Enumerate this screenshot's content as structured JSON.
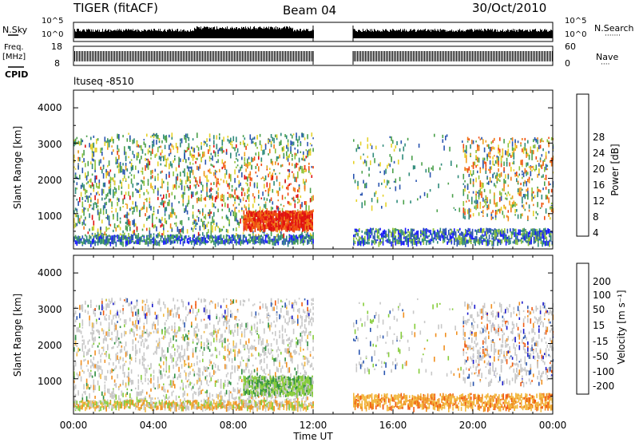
{
  "header": {
    "station": "TIGER (fitACF)",
    "beam": "Beam 04",
    "date": "30/Oct/2010"
  },
  "panel_labels": {
    "nsky": "N.Sky",
    "nsky_hi": "10^5",
    "nsky_lo": "10^0",
    "nsearch": "N.Search",
    "nsearch_hi": "10^5",
    "nsearch_lo": "10^0",
    "dots1": "·······",
    "freq": "Freq.",
    "freq_unit": "[MHz]",
    "freq_hi": "18",
    "freq_lo": "8",
    "nave": "Nave",
    "nave_hi": "60",
    "nave_lo": "0",
    "dots2": "····",
    "cpid": "CPID",
    "cpid_value": "ltuseq -8510"
  },
  "colors": {
    "power": [
      "#1a1aff",
      "#2a55b0",
      "#2e8a7a",
      "#4aa04a",
      "#8ec23a",
      "#e6d22a",
      "#f0a020",
      "#f07a18",
      "#f04a10",
      "#e01010"
    ],
    "velocity": [
      "#e01010",
      "#f05a10",
      "#f09020",
      "#f2b840",
      "#c8c8c8",
      "#c8c8c8",
      "#86cc3a",
      "#2f8f40",
      "#2a55b0",
      "#1a1acc"
    ]
  },
  "chart_data": [
    {
      "type": "heatmap",
      "name": "power",
      "ylabel": "Slant Range [km]",
      "y_ticks": [
        "1000",
        "2000",
        "3000",
        "4000"
      ],
      "ylim": [
        0,
        4500
      ],
      "xlim": [
        0,
        24
      ],
      "colorbar_label": "Power [dB]",
      "colorbar_ticks": [
        "4",
        "8",
        "12",
        "16",
        "20",
        "24",
        "28"
      ],
      "colorbar_range": [
        0,
        32
      ]
    },
    {
      "type": "heatmap",
      "name": "velocity",
      "ylabel": "Slant Range [km]",
      "y_ticks": [
        "1000",
        "2000",
        "3000",
        "4000"
      ],
      "ylim": [
        0,
        4500
      ],
      "xlim": [
        0,
        24
      ],
      "colorbar_label": "Velocity [m s⁻¹]",
      "colorbar_ticks": [
        "-200",
        "-100",
        "-50",
        "-15",
        "15",
        "50",
        "100",
        "200"
      ]
    }
  ],
  "x_axis": {
    "label": "Time UT",
    "ticks": [
      "00:00",
      "04:00",
      "08:00",
      "12:00",
      "16:00",
      "20:00",
      "00:00"
    ]
  }
}
